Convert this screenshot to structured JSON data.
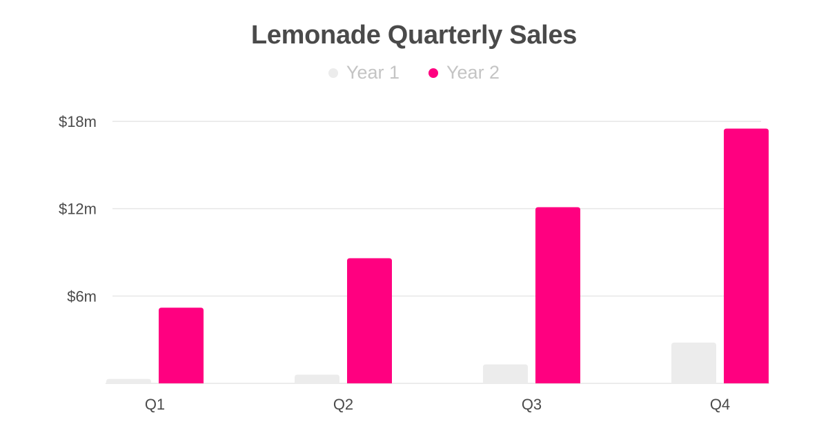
{
  "chart_data": {
    "type": "bar",
    "title": "Lemonade Quarterly Sales",
    "categories": [
      "Q1",
      "Q2",
      "Q3",
      "Q4"
    ],
    "series": [
      {
        "name": "Year 1",
        "color": "#ececec",
        "values": [
          0.3,
          0.6,
          1.3,
          2.8
        ]
      },
      {
        "name": "Year 2",
        "color": "#ff0080",
        "values": [
          5.2,
          8.6,
          12.1,
          17.5
        ]
      }
    ],
    "ylim": [
      0,
      18
    ],
    "yticks": [
      6,
      12,
      18
    ],
    "ytick_labels": [
      "$6m",
      "$12m",
      "$18m"
    ],
    "xlabel": "",
    "ylabel": "",
    "grid": true,
    "legend_position": "top-center"
  }
}
